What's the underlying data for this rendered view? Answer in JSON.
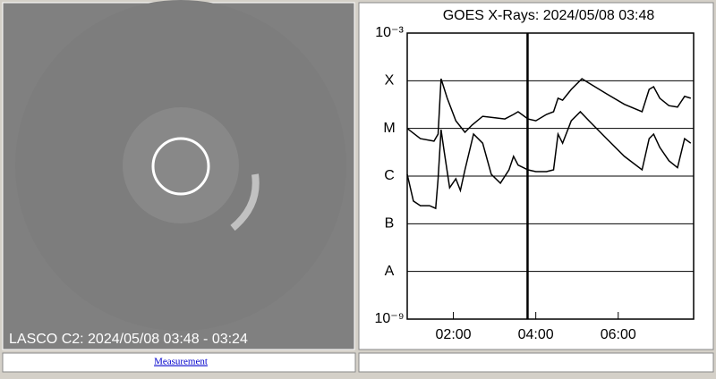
{
  "image": {
    "caption": "LASCO C2: 2024/05/08 03:48 - 03:24"
  },
  "link": {
    "text": "Measurement"
  },
  "chart_data": {
    "type": "line",
    "title": "GOES X-Rays: 2024/05/08 03:48",
    "log_scale_y": true,
    "grid": true,
    "marker_x": 3.8,
    "xlim": [
      0.88,
      7.83
    ],
    "xticks": [
      {
        "value": 2,
        "label": "02:00"
      },
      {
        "value": 4,
        "label": "04:00"
      },
      {
        "value": 6,
        "label": "06:00"
      }
    ],
    "ylim": [
      1e-09,
      0.001
    ],
    "yticks": [
      {
        "value": 0.001,
        "label": "10⁻³"
      },
      {
        "value": 0.0001,
        "label": "X"
      },
      {
        "value": 1e-05,
        "label": "M"
      },
      {
        "value": 1e-06,
        "label": "C"
      },
      {
        "value": 1e-07,
        "label": "B"
      },
      {
        "value": 1e-08,
        "label": "A"
      },
      {
        "value": 1e-09,
        "label": "10⁻⁹"
      }
    ],
    "series": [
      {
        "color": "#000000",
        "x": [
          0.88,
          1.2,
          1.53,
          1.63,
          1.7,
          1.85,
          2.06,
          2.28,
          2.45,
          2.71,
          3.03,
          3.25,
          3.46,
          3.57,
          3.81,
          4.0,
          4.26,
          4.43,
          4.54,
          4.65,
          4.86,
          5.12,
          5.29,
          5.72,
          6.15,
          6.58,
          6.75,
          6.86,
          7.01,
          7.23,
          7.44,
          7.61,
          7.76
        ],
        "values": [
          1e-05,
          6.1e-06,
          5.4e-06,
          7.6e-06,
          0.00011,
          4.3e-05,
          1.45e-05,
          8.3e-06,
          1.17e-05,
          1.8e-05,
          1.66e-05,
          1.58e-05,
          1.97e-05,
          2.24e-05,
          1.58e-05,
          1.45e-05,
          1.97e-05,
          2.24e-05,
          4.3e-05,
          3.9e-05,
          6.6e-05,
          0.00011,
          8.9e-05,
          5.3e-05,
          3.2e-05,
          2.24e-05,
          6.6e-05,
          7.5e-05,
          4.3e-05,
          3e-05,
          2.8e-05,
          4.7e-05,
          4.3e-05
        ]
      },
      {
        "color": "#000000",
        "x": [
          0.88,
          1.03,
          1.2,
          1.42,
          1.57,
          1.63,
          1.7,
          1.78,
          1.91,
          2.06,
          2.17,
          2.28,
          2.49,
          2.71,
          2.92,
          3.14,
          3.35,
          3.46,
          3.57,
          3.81,
          4.0,
          4.26,
          4.43,
          4.54,
          4.65,
          4.86,
          5.08,
          5.29,
          5.72,
          6.15,
          6.58,
          6.75,
          6.86,
          7.01,
          7.23,
          7.44,
          7.61,
          7.76
        ],
        "values": [
          1.09e-06,
          3e-07,
          2.4e-07,
          2.4e-07,
          2.1e-07,
          8.8e-07,
          9.4e-06,
          3.2e-06,
          5.7e-07,
          8.8e-07,
          5e-07,
          1.35e-06,
          7.6e-06,
          4.9e-06,
          1.09e-06,
          7.1e-07,
          1.35e-06,
          2.6e-06,
          1.7e-06,
          1.35e-06,
          1.24e-06,
          1.24e-06,
          1.35e-06,
          7.6e-06,
          4.9e-06,
          1.45e-05,
          2.24e-05,
          1.45e-05,
          6.1e-06,
          2.6e-06,
          1.35e-06,
          6.1e-06,
          7.6e-06,
          4e-06,
          2.1e-06,
          1.5e-06,
          6.1e-06,
          4.9e-06
        ]
      }
    ]
  }
}
